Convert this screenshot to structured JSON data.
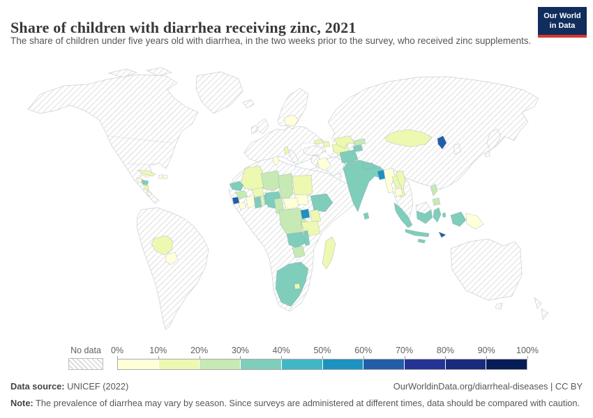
{
  "header": {
    "title": "Share of children with diarrhea receiving zinc, 2021",
    "subtitle": "The share of children under five years old with diarrhea, in the two weeks prior to the survey, who received zinc supplements.",
    "logo": {
      "line1": "Our World",
      "line2": "in Data"
    }
  },
  "legend": {
    "no_data_label": "No data"
  },
  "footer": {
    "source_label": "Data source:",
    "source_text": " UNICEF (2022)",
    "citation": "OurWorldinData.org/diarrheal-diseases | CC BY",
    "note_label": "Note:",
    "note_text": " The prevalence of diarrhea may vary by season. Since surveys are administered at different times, data should be compared with caution."
  },
  "colors": {
    "logo_bg": "#102D5C",
    "logo_accent": "#D9382E",
    "no_data_hatch": "#dddddd",
    "map_border": "#c9ced4"
  },
  "chart_data": {
    "type": "heatmap",
    "subtype": "world-choropleth",
    "title": "Share of children with diarrhea receiving zinc, 2021",
    "unit": "%",
    "legend_position": "bottom",
    "colorscale": {
      "ticks": [
        "0%",
        "10%",
        "20%",
        "30%",
        "40%",
        "50%",
        "60%",
        "70%",
        "80%",
        "90%",
        "100%"
      ],
      "bin_ranges": [
        "0-10%",
        "10-20%",
        "20-30%",
        "30-40%",
        "40-50%",
        "50-60%",
        "60-70%",
        "70-80%",
        "80-90%",
        "90-100%"
      ],
      "colors": [
        "#ffffd9",
        "#edf8b1",
        "#c7e9b4",
        "#7fcdbb",
        "#41b6c4",
        "#1d91c0",
        "#225ea8",
        "#253494",
        "#1b2a7d",
        "#081d58"
      ],
      "no_data": "hatched"
    },
    "countries": [
      {
        "name": "Guatemala",
        "bin": 0
      },
      {
        "name": "Honduras",
        "bin": 3
      },
      {
        "name": "Nicaragua",
        "bin": 1
      },
      {
        "name": "Costa Rica",
        "bin": 0
      },
      {
        "name": "Cuba",
        "bin": 1
      },
      {
        "name": "Haiti",
        "bin": 0
      },
      {
        "name": "Dominican Republic",
        "bin": 0
      },
      {
        "name": "Bolivia",
        "bin": 1
      },
      {
        "name": "Paraguay",
        "bin": 0
      },
      {
        "name": "Belarus",
        "bin": 0
      },
      {
        "name": "Albania",
        "bin": 1
      },
      {
        "name": "Georgia",
        "bin": 1
      },
      {
        "name": "Azerbaijan",
        "bin": 1
      },
      {
        "name": "Tunisia",
        "bin": 0
      },
      {
        "name": "Mali",
        "bin": 1
      },
      {
        "name": "Senegal",
        "bin": 3
      },
      {
        "name": "Guinea",
        "bin": 2
      },
      {
        "name": "Sierra Leone",
        "bin": 6
      },
      {
        "name": "Liberia",
        "bin": 0
      },
      {
        "name": "Cote d'Ivoire",
        "bin": 0
      },
      {
        "name": "Burkina Faso",
        "bin": 1
      },
      {
        "name": "Ghana",
        "bin": 3
      },
      {
        "name": "Togo",
        "bin": 1
      },
      {
        "name": "Benin",
        "bin": 3
      },
      {
        "name": "Nigeria",
        "bin": 3
      },
      {
        "name": "Niger",
        "bin": 2
      },
      {
        "name": "Chad",
        "bin": 2
      },
      {
        "name": "Sudan",
        "bin": 1
      },
      {
        "name": "South Sudan",
        "bin": 0
      },
      {
        "name": "Ethiopia",
        "bin": 3
      },
      {
        "name": "Cameroon",
        "bin": 2
      },
      {
        "name": "Central African Republic",
        "bin": 0
      },
      {
        "name": "Democratic Republic of Congo",
        "bin": 2
      },
      {
        "name": "Uganda",
        "bin": 5
      },
      {
        "name": "Kenya",
        "bin": 1
      },
      {
        "name": "Rwanda",
        "bin": 2
      },
      {
        "name": "Tanzania",
        "bin": 1
      },
      {
        "name": "Zambia",
        "bin": 3
      },
      {
        "name": "Malawi",
        "bin": 3
      },
      {
        "name": "Zimbabwe",
        "bin": 2
      },
      {
        "name": "Madagascar",
        "bin": 1
      },
      {
        "name": "South Africa",
        "bin": 3
      },
      {
        "name": "Lesotho",
        "bin": 1
      },
      {
        "name": "Iraq",
        "bin": 0
      },
      {
        "name": "Turkmenistan",
        "bin": 1
      },
      {
        "name": "Uzbekistan",
        "bin": 1
      },
      {
        "name": "Kyrgyzstan",
        "bin": 2
      },
      {
        "name": "Tajikistan",
        "bin": 3
      },
      {
        "name": "Afghanistan",
        "bin": 3
      },
      {
        "name": "Pakistan",
        "bin": 1
      },
      {
        "name": "India",
        "bin": 3
      },
      {
        "name": "Nepal",
        "bin": 3
      },
      {
        "name": "Bangladesh",
        "bin": 5
      },
      {
        "name": "Sri Lanka",
        "bin": 3
      },
      {
        "name": "Myanmar",
        "bin": 0
      },
      {
        "name": "Laos",
        "bin": 1
      },
      {
        "name": "Vietnam",
        "bin": 1
      },
      {
        "name": "Cambodia",
        "bin": 0
      },
      {
        "name": "Mongolia",
        "bin": 1
      },
      {
        "name": "North Korea",
        "bin": 6
      },
      {
        "name": "Philippines",
        "bin": 2
      },
      {
        "name": "Indonesia",
        "bin": 3
      },
      {
        "name": "Timor-Leste",
        "bin": 6
      },
      {
        "name": "Papua New Guinea",
        "bin": 0
      }
    ]
  }
}
